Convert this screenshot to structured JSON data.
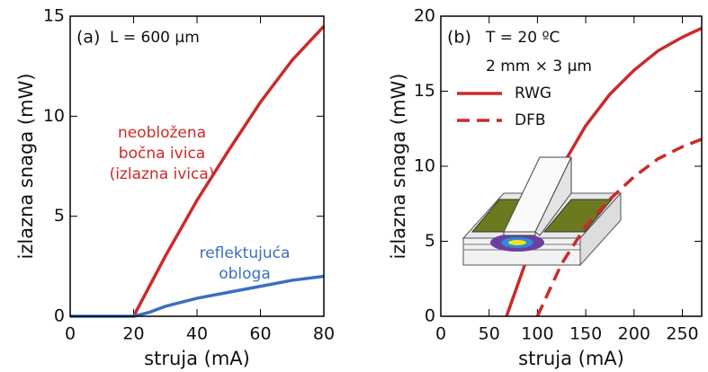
{
  "chart_data": [
    {
      "type": "line",
      "panel_label": "(a)",
      "subtitle": "L = 600 µm",
      "xlabel": "struja (mA)",
      "ylabel": "izlazna snaga (mW)",
      "xlim": [
        0,
        80
      ],
      "ylim": [
        0,
        15
      ],
      "xticks": [
        0,
        20,
        40,
        60,
        80
      ],
      "yticks": [
        0,
        5,
        10,
        15
      ],
      "series": [
        {
          "color": "#cc2a2a",
          "linestyle": "solid",
          "x": [
            20,
            30,
            40,
            50,
            60,
            70,
            80
          ],
          "values": [
            0,
            3.0,
            5.8,
            8.3,
            10.7,
            12.8,
            14.5
          ]
        },
        {
          "color": "#3a6fc0",
          "linestyle": "solid",
          "x": [
            0,
            20,
            25,
            30,
            40,
            50,
            60,
            70,
            80
          ],
          "values": [
            0,
            0,
            0.2,
            0.5,
            0.9,
            1.2,
            1.5,
            1.8,
            2.0
          ]
        }
      ],
      "annotations": [
        {
          "color": "#cc2a2a",
          "lines": [
            "neobložena",
            "bočna ivica",
            "(izlazna ivica)"
          ]
        },
        {
          "color": "#3a6fc0",
          "lines": [
            "reflektujuća",
            "obloga"
          ]
        }
      ]
    },
    {
      "type": "line",
      "panel_label": "(b)",
      "subtitle": "T = 20 ºC",
      "subtitle2": "2 mm × 3 µm",
      "xlabel": "struja (mA)",
      "ylabel": "izlazna snaga (mW)",
      "xlim": [
        0,
        270
      ],
      "ylim": [
        0,
        20
      ],
      "xticks": [
        0,
        50,
        100,
        150,
        200,
        250
      ],
      "yticks": [
        0,
        5,
        10,
        15,
        20
      ],
      "series": [
        {
          "name": "RWG",
          "color": "#cc2a2a",
          "linestyle": "solid",
          "x": [
            68,
            90,
            110,
            130,
            150,
            175,
            200,
            225,
            250,
            270
          ],
          "values": [
            0,
            4,
            7.5,
            10.5,
            12.7,
            14.8,
            16.4,
            17.7,
            18.6,
            19.2
          ]
        },
        {
          "name": "DFB",
          "color": "#cc2a2a",
          "linestyle": "dashed",
          "x": [
            100,
            125,
            150,
            175,
            200,
            225,
            250,
            270
          ],
          "values": [
            0,
            3.5,
            6,
            7.8,
            9.3,
            10.5,
            11.3,
            11.8
          ]
        }
      ]
    }
  ]
}
